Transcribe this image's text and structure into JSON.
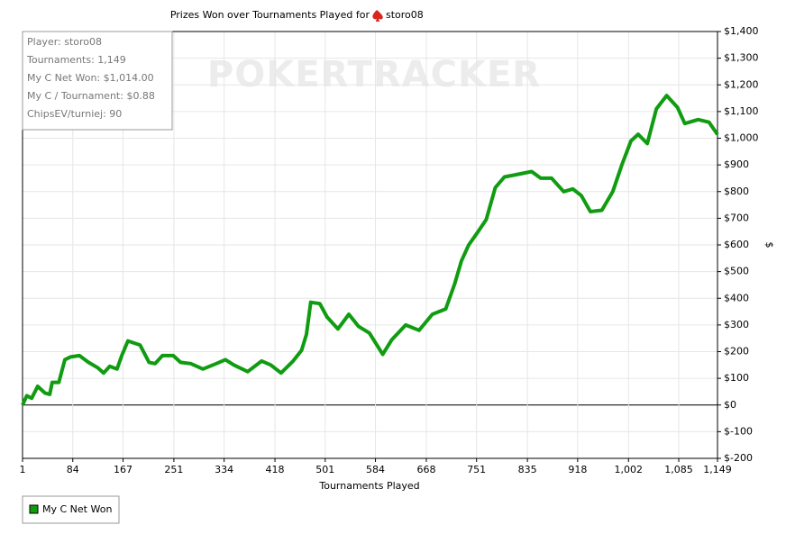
{
  "chart_data": {
    "type": "line",
    "title": "Prizes Won over Tournaments Played for",
    "player": "storo08",
    "watermark": "POKERTRACKER",
    "info_box": [
      "Player: storo08",
      "Tournaments: 1,149",
      "My C Net Won: $1,014.00",
      "My C / Tournament: $0.88",
      "ChipsEV/turniej: 90"
    ],
    "x_label": "Tournaments Played",
    "y_label": "$",
    "grid": true,
    "y_axis_side": "right",
    "legend_position": "below-left",
    "xlim": [
      1,
      1149
    ],
    "xticks": [
      1,
      84,
      167,
      251,
      334,
      418,
      501,
      584,
      668,
      751,
      835,
      918,
      {
        "value": 1002,
        "label": "1,002"
      },
      {
        "value": 1085,
        "label": "1,085"
      },
      {
        "value": 1149,
        "label": "1,149"
      }
    ],
    "ylim": [
      -200,
      1400
    ],
    "yticks": [
      {
        "value": -200,
        "label": "$-200"
      },
      {
        "value": -100,
        "label": "$-100"
      },
      {
        "value": 0,
        "label": "$0"
      },
      {
        "value": 100,
        "label": "$100"
      },
      {
        "value": 200,
        "label": "$200"
      },
      {
        "value": 300,
        "label": "$300"
      },
      {
        "value": 400,
        "label": "$400"
      },
      {
        "value": 500,
        "label": "$500"
      },
      {
        "value": 600,
        "label": "$600"
      },
      {
        "value": 700,
        "label": "$700"
      },
      {
        "value": 800,
        "label": "$800"
      },
      {
        "value": 900,
        "label": "$900"
      },
      {
        "value": 1000,
        "label": "$1,000"
      },
      {
        "value": 1100,
        "label": "$1,100"
      },
      {
        "value": 1200,
        "label": "$1,200"
      },
      {
        "value": 1300,
        "label": "$1,300"
      },
      {
        "value": 1400,
        "label": "$1,400"
      }
    ],
    "x": [
      1,
      8,
      16,
      26,
      38,
      46,
      50,
      61,
      65,
      71,
      80,
      95,
      110,
      125,
      135,
      145,
      157,
      165,
      175,
      195,
      210,
      220,
      232,
      250,
      262,
      279,
      299,
      321,
      336,
      350,
      373,
      396,
      411,
      428,
      448,
      462,
      470,
      477,
      492,
      504,
      522,
      540,
      556,
      574,
      596,
      611,
      634,
      656,
      678,
      700,
      715,
      726,
      738,
      752,
      767,
      782,
      797,
      820,
      842,
      857,
      875,
      895,
      910,
      924,
      939,
      958,
      976,
      991,
      1006,
      1018,
      1033,
      1048,
      1065,
      1083,
      1095,
      1117,
      1135,
      1149
    ],
    "series": [
      {
        "name": "My C Net Won",
        "color": "#109c10",
        "values": [
          0,
          35,
          25,
          70,
          45,
          40,
          85,
          85,
          120,
          170,
          180,
          185,
          160,
          140,
          120,
          145,
          135,
          185,
          240,
          225,
          160,
          155,
          185,
          185,
          160,
          155,
          135,
          155,
          170,
          150,
          125,
          165,
          150,
          120,
          165,
          205,
          265,
          385,
          380,
          330,
          285,
          340,
          295,
          270,
          190,
          245,
          300,
          280,
          340,
          360,
          455,
          540,
          600,
          645,
          695,
          815,
          855,
          865,
          875,
          850,
          850,
          800,
          810,
          785,
          725,
          730,
          800,
          900,
          990,
          1015,
          980,
          1110,
          1160,
          1115,
          1055,
          1070,
          1060,
          1014
        ]
      }
    ]
  }
}
